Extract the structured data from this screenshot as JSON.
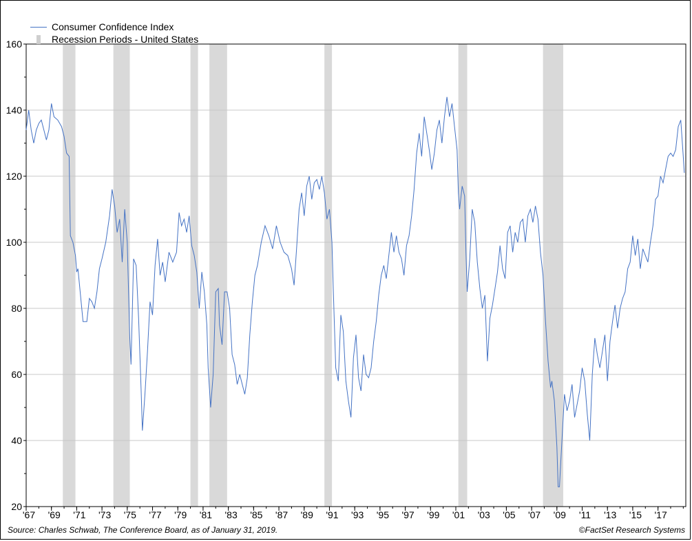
{
  "chart_data": {
    "type": "line",
    "title": "",
    "xlabel": "",
    "ylabel": "",
    "ylim": [
      20,
      160
    ],
    "xlim": [
      1967.0,
      2019.2
    ],
    "y_ticks": [
      20,
      40,
      60,
      80,
      100,
      120,
      140,
      160
    ],
    "x_ticks": [
      1967,
      1969,
      1971,
      1973,
      1975,
      1977,
      1979,
      1981,
      1983,
      1985,
      1987,
      1989,
      1991,
      1993,
      1995,
      1997,
      1999,
      2001,
      2003,
      2005,
      2007,
      2009,
      2011,
      2013,
      2015,
      2017
    ],
    "x_tick_labels": [
      "'67",
      "'69",
      "'71",
      "'73",
      "'75",
      "'77",
      "'79",
      "'81",
      "'83",
      "'85",
      "'87",
      "'89",
      "'91",
      "'93",
      "'95",
      "'97",
      "'99",
      "'01",
      "'03",
      "'05",
      "'07",
      "'09",
      "'11",
      "'13",
      "'15",
      "'17"
    ],
    "grid": true,
    "legend_position": "top-left",
    "series": [
      {
        "name": "Consumer Confidence Index",
        "color": "#4472c4",
        "points": [
          [
            1967.0,
            134
          ],
          [
            1967.2,
            140
          ],
          [
            1967.4,
            134
          ],
          [
            1967.6,
            130
          ],
          [
            1967.8,
            134
          ],
          [
            1968.0,
            136
          ],
          [
            1968.2,
            137
          ],
          [
            1968.4,
            134
          ],
          [
            1968.6,
            131
          ],
          [
            1968.8,
            134
          ],
          [
            1969.0,
            142
          ],
          [
            1969.2,
            138
          ],
          [
            1969.5,
            137
          ],
          [
            1969.8,
            135
          ],
          [
            1970.0,
            132
          ],
          [
            1970.2,
            127
          ],
          [
            1970.4,
            126
          ],
          [
            1970.5,
            102
          ],
          [
            1970.7,
            100
          ],
          [
            1970.9,
            96
          ],
          [
            1971.0,
            91
          ],
          [
            1971.1,
            92
          ],
          [
            1971.3,
            84
          ],
          [
            1971.5,
            76
          ],
          [
            1971.8,
            76
          ],
          [
            1972.0,
            83
          ],
          [
            1972.2,
            82
          ],
          [
            1972.4,
            80
          ],
          [
            1972.6,
            85
          ],
          [
            1972.8,
            92
          ],
          [
            1973.0,
            95
          ],
          [
            1973.3,
            100
          ],
          [
            1973.6,
            108
          ],
          [
            1973.8,
            116
          ],
          [
            1974.0,
            111
          ],
          [
            1974.2,
            103
          ],
          [
            1974.4,
            107
          ],
          [
            1974.6,
            94
          ],
          [
            1974.8,
            110
          ],
          [
            1975.0,
            100
          ],
          [
            1975.2,
            71
          ],
          [
            1975.3,
            63
          ],
          [
            1975.5,
            95
          ],
          [
            1975.7,
            93
          ],
          [
            1975.9,
            77
          ],
          [
            1976.1,
            55
          ],
          [
            1976.2,
            43
          ],
          [
            1976.4,
            54
          ],
          [
            1976.6,
            67
          ],
          [
            1976.8,
            82
          ],
          [
            1977.0,
            78
          ],
          [
            1977.2,
            93
          ],
          [
            1977.4,
            101
          ],
          [
            1977.6,
            90
          ],
          [
            1977.8,
            94
          ],
          [
            1978.0,
            88
          ],
          [
            1978.3,
            97
          ],
          [
            1978.6,
            94
          ],
          [
            1978.9,
            97
          ],
          [
            1979.1,
            109
          ],
          [
            1979.3,
            105
          ],
          [
            1979.5,
            107
          ],
          [
            1979.7,
            103
          ],
          [
            1979.9,
            108
          ],
          [
            1980.1,
            99
          ],
          [
            1980.3,
            96
          ],
          [
            1980.5,
            91
          ],
          [
            1980.7,
            80
          ],
          [
            1980.9,
            91
          ],
          [
            1981.1,
            85
          ],
          [
            1981.3,
            75
          ],
          [
            1981.4,
            62
          ],
          [
            1981.6,
            50
          ],
          [
            1981.8,
            60
          ],
          [
            1982.0,
            85
          ],
          [
            1982.2,
            86
          ],
          [
            1982.3,
            75
          ],
          [
            1982.5,
            69
          ],
          [
            1982.7,
            85
          ],
          [
            1982.9,
            85
          ],
          [
            1983.1,
            80
          ],
          [
            1983.3,
            66
          ],
          [
            1983.5,
            63
          ],
          [
            1983.7,
            57
          ],
          [
            1983.9,
            60
          ],
          [
            1984.1,
            57
          ],
          [
            1984.3,
            54
          ],
          [
            1984.5,
            59
          ],
          [
            1984.7,
            72
          ],
          [
            1984.9,
            82
          ],
          [
            1985.1,
            90
          ],
          [
            1985.3,
            93
          ],
          [
            1985.6,
            100
          ],
          [
            1985.9,
            105
          ],
          [
            1986.2,
            102
          ],
          [
            1986.5,
            98
          ],
          [
            1986.8,
            105
          ],
          [
            1987.1,
            100
          ],
          [
            1987.4,
            97
          ],
          [
            1987.7,
            96
          ],
          [
            1988.0,
            92
          ],
          [
            1988.2,
            87
          ],
          [
            1988.4,
            98
          ],
          [
            1988.6,
            110
          ],
          [
            1988.8,
            115
          ],
          [
            1989.0,
            108
          ],
          [
            1989.2,
            117
          ],
          [
            1989.4,
            120
          ],
          [
            1989.6,
            113
          ],
          [
            1989.8,
            118
          ],
          [
            1990.0,
            119
          ],
          [
            1990.2,
            116
          ],
          [
            1990.4,
            120
          ],
          [
            1990.6,
            115
          ],
          [
            1990.8,
            107
          ],
          [
            1991.0,
            110
          ],
          [
            1991.2,
            100
          ],
          [
            1991.3,
            86
          ],
          [
            1991.5,
            62
          ],
          [
            1991.7,
            58
          ],
          [
            1991.9,
            78
          ],
          [
            1992.1,
            73
          ],
          [
            1992.3,
            58
          ],
          [
            1992.5,
            52
          ],
          [
            1992.7,
            47
          ],
          [
            1992.9,
            65
          ],
          [
            1993.1,
            72
          ],
          [
            1993.3,
            59
          ],
          [
            1993.5,
            55
          ],
          [
            1993.7,
            66
          ],
          [
            1993.9,
            60
          ],
          [
            1994.1,
            59
          ],
          [
            1994.3,
            62
          ],
          [
            1994.5,
            70
          ],
          [
            1994.7,
            76
          ],
          [
            1994.9,
            84
          ],
          [
            1995.1,
            90
          ],
          [
            1995.3,
            93
          ],
          [
            1995.5,
            89
          ],
          [
            1995.7,
            96
          ],
          [
            1995.9,
            103
          ],
          [
            1996.1,
            97
          ],
          [
            1996.3,
            102
          ],
          [
            1996.5,
            97
          ],
          [
            1996.7,
            95
          ],
          [
            1996.9,
            90
          ],
          [
            1997.1,
            99
          ],
          [
            1997.3,
            102
          ],
          [
            1997.5,
            108
          ],
          [
            1997.7,
            116
          ],
          [
            1997.9,
            127
          ],
          [
            1998.1,
            133
          ],
          [
            1998.3,
            126
          ],
          [
            1998.5,
            138
          ],
          [
            1998.7,
            133
          ],
          [
            1998.9,
            128
          ],
          [
            1999.1,
            122
          ],
          [
            1999.3,
            127
          ],
          [
            1999.5,
            134
          ],
          [
            1999.7,
            137
          ],
          [
            1999.9,
            130
          ],
          [
            2000.1,
            138
          ],
          [
            2000.3,
            144
          ],
          [
            2000.5,
            138
          ],
          [
            2000.7,
            142
          ],
          [
            2000.9,
            135
          ],
          [
            2001.1,
            128
          ],
          [
            2001.2,
            115
          ],
          [
            2001.3,
            110
          ],
          [
            2001.5,
            117
          ],
          [
            2001.7,
            114
          ],
          [
            2001.8,
            97
          ],
          [
            2001.9,
            85
          ],
          [
            2002.1,
            95
          ],
          [
            2002.3,
            110
          ],
          [
            2002.5,
            106
          ],
          [
            2002.7,
            94
          ],
          [
            2002.9,
            86
          ],
          [
            2003.1,
            80
          ],
          [
            2003.3,
            84
          ],
          [
            2003.5,
            64
          ],
          [
            2003.7,
            77
          ],
          [
            2003.9,
            81
          ],
          [
            2004.1,
            86
          ],
          [
            2004.3,
            91
          ],
          [
            2004.5,
            99
          ],
          [
            2004.7,
            92
          ],
          [
            2004.9,
            89
          ],
          [
            2005.1,
            103
          ],
          [
            2005.3,
            105
          ],
          [
            2005.5,
            97
          ],
          [
            2005.7,
            103
          ],
          [
            2005.9,
            100
          ],
          [
            2006.1,
            106
          ],
          [
            2006.3,
            107
          ],
          [
            2006.5,
            100
          ],
          [
            2006.7,
            108
          ],
          [
            2006.9,
            110
          ],
          [
            2007.1,
            106
          ],
          [
            2007.3,
            111
          ],
          [
            2007.5,
            107
          ],
          [
            2007.7,
            97
          ],
          [
            2007.9,
            90
          ],
          [
            2008.1,
            76
          ],
          [
            2008.3,
            64
          ],
          [
            2008.5,
            56
          ],
          [
            2008.6,
            58
          ],
          [
            2008.8,
            52
          ],
          [
            2009.0,
            38
          ],
          [
            2009.1,
            26
          ],
          [
            2009.2,
            26
          ],
          [
            2009.4,
            40
          ],
          [
            2009.6,
            54
          ],
          [
            2009.8,
            49
          ],
          [
            2010.0,
            52
          ],
          [
            2010.2,
            57
          ],
          [
            2010.4,
            47
          ],
          [
            2010.6,
            51
          ],
          [
            2010.8,
            55
          ],
          [
            2011.0,
            62
          ],
          [
            2011.2,
            58
          ],
          [
            2011.4,
            48
          ],
          [
            2011.6,
            40
          ],
          [
            2011.8,
            60
          ],
          [
            2012.0,
            71
          ],
          [
            2012.2,
            66
          ],
          [
            2012.4,
            62
          ],
          [
            2012.6,
            67
          ],
          [
            2012.8,
            72
          ],
          [
            2013.0,
            58
          ],
          [
            2013.2,
            70
          ],
          [
            2013.4,
            76
          ],
          [
            2013.6,
            81
          ],
          [
            2013.8,
            74
          ],
          [
            2014.0,
            80
          ],
          [
            2014.2,
            83
          ],
          [
            2014.4,
            85
          ],
          [
            2014.6,
            92
          ],
          [
            2014.8,
            94
          ],
          [
            2015.0,
            102
          ],
          [
            2015.2,
            96
          ],
          [
            2015.4,
            101
          ],
          [
            2015.6,
            92
          ],
          [
            2015.8,
            98
          ],
          [
            2016.0,
            96
          ],
          [
            2016.2,
            94
          ],
          [
            2016.4,
            100
          ],
          [
            2016.6,
            105
          ],
          [
            2016.8,
            113
          ],
          [
            2017.0,
            114
          ],
          [
            2017.2,
            120
          ],
          [
            2017.4,
            118
          ],
          [
            2017.6,
            122
          ],
          [
            2017.8,
            126
          ],
          [
            2018.0,
            127
          ],
          [
            2018.2,
            126
          ],
          [
            2018.4,
            128
          ],
          [
            2018.6,
            135
          ],
          [
            2018.8,
            137
          ],
          [
            2019.0,
            126
          ],
          [
            2019.08,
            121
          ]
        ]
      }
    ],
    "recessions": {
      "name": "Recession Periods - United States",
      "color": "#d9d9d9",
      "periods": [
        [
          1969.9,
          1970.9
        ],
        [
          1973.9,
          1975.2
        ],
        [
          1980.0,
          1980.6
        ],
        [
          1981.5,
          1982.9
        ],
        [
          1990.6,
          1991.2
        ],
        [
          2001.2,
          2001.9
        ],
        [
          2007.9,
          2009.5
        ]
      ]
    }
  },
  "footer": {
    "source": "Source: Charles Schwab, The Conference Board, as of January 31, 2019.",
    "copyright": "©FactSet Research Systems"
  }
}
